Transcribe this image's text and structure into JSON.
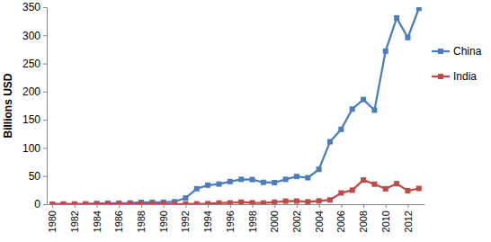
{
  "chart_data": {
    "type": "line",
    "y_label": "Billions USD",
    "x": [
      1980,
      1981,
      1982,
      1983,
      1984,
      1985,
      1986,
      1987,
      1988,
      1989,
      1990,
      1991,
      1992,
      1993,
      1994,
      1995,
      1996,
      1997,
      1998,
      1999,
      2000,
      2001,
      2002,
      2003,
      2004,
      2005,
      2006,
      2007,
      2008,
      2009,
      2010,
      2011,
      2012,
      2013
    ],
    "series": [
      {
        "name": "China",
        "color": "#4a7ebb",
        "marker": "square",
        "values": [
          0.1,
          0.3,
          0.4,
          0.6,
          1.3,
          1.7,
          1.9,
          2.3,
          3.2,
          3.4,
          3.5,
          4.4,
          11,
          27.5,
          33.8,
          35.8,
          40.2,
          44.2,
          43.8,
          38.8,
          38.4,
          44.2,
          49.3,
          47.1,
          62,
          111,
          133,
          169,
          186,
          167,
          272,
          331,
          296,
          348
        ]
      },
      {
        "name": "India",
        "color": "#be4b48",
        "marker": "square",
        "values": [
          0.1,
          0.1,
          0.1,
          0.1,
          0.1,
          0.1,
          0.1,
          0.2,
          0.1,
          0.3,
          0.2,
          0.1,
          0.3,
          0.6,
          1,
          2.1,
          2.4,
          3.6,
          2.6,
          2.2,
          3.6,
          5.5,
          5.6,
          4.3,
          5.8,
          7.6,
          20,
          25,
          43,
          35.6,
          27.4,
          36.5,
          24,
          28
        ]
      }
    ],
    "xlim": [
      1979.5,
      2013.5
    ],
    "xticks": [
      1980,
      1982,
      1984,
      1986,
      1988,
      1990,
      1992,
      1994,
      1996,
      1998,
      2000,
      2002,
      2004,
      2006,
      2008,
      2010,
      2012
    ],
    "ylim": [
      0,
      350
    ],
    "yticks": [
      0,
      50,
      100,
      150,
      200,
      250,
      300,
      350
    ],
    "grid": false,
    "legend": "right"
  }
}
